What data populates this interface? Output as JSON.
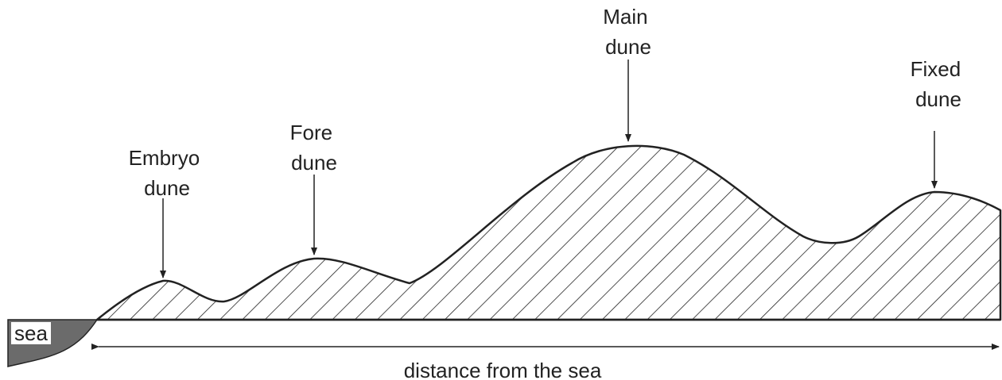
{
  "labels": [
    {
      "lines": [
        "Embryo",
        "dune"
      ]
    },
    {
      "lines": [
        "Fore",
        "dune"
      ]
    },
    {
      "lines": [
        "Main",
        "dune"
      ]
    },
    {
      "lines": [
        "Fixed",
        "dune"
      ]
    }
  ],
  "sea": "sea",
  "axis_label": "distance from the sea"
}
